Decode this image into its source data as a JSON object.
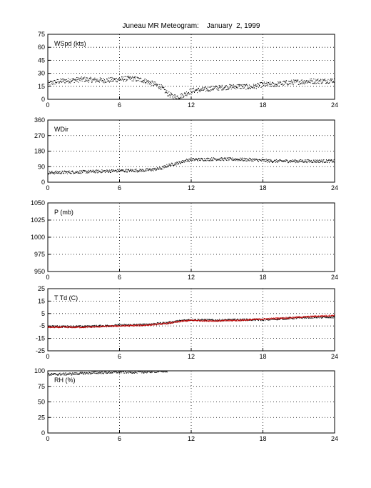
{
  "title": "Juneau MR Meteogram:    January  2, 1999",
  "colors": {
    "primary": "#000000",
    "dewpoint": "#cc0000",
    "grid": "#000000"
  },
  "chart_data": [
    {
      "type": "scatter",
      "label": "WSpd (kts)",
      "xlim": [
        0,
        24
      ],
      "ylim": [
        0,
        75
      ],
      "xticks": [
        0,
        6,
        12,
        18,
        24
      ],
      "yticks": [
        0,
        15,
        30,
        45,
        60,
        75
      ],
      "grid": true,
      "series": [
        {
          "color": "#000000",
          "keypoints": [
            [
              0,
              18
            ],
            [
              1,
              21
            ],
            [
              2,
              22
            ],
            [
              3,
              23
            ],
            [
              4,
              22
            ],
            [
              5,
              22
            ],
            [
              6,
              23
            ],
            [
              7,
              24
            ],
            [
              8,
              22
            ],
            [
              9,
              17
            ],
            [
              9.5,
              14
            ],
            [
              10,
              7
            ],
            [
              10.5,
              3
            ],
            [
              11,
              3
            ],
            [
              11.5,
              6
            ],
            [
              12,
              10
            ],
            [
              13,
              11
            ],
            [
              14,
              13
            ],
            [
              15,
              14
            ],
            [
              16,
              15
            ],
            [
              17,
              14
            ],
            [
              18,
              17
            ],
            [
              19,
              17
            ],
            [
              20,
              19
            ],
            [
              21,
              20
            ],
            [
              22,
              21
            ],
            [
              23,
              21
            ],
            [
              24,
              22
            ]
          ],
          "spread": 3
        }
      ]
    },
    {
      "type": "scatter",
      "label": "WDir",
      "xlim": [
        0,
        24
      ],
      "ylim": [
        0,
        360
      ],
      "xticks": [
        0,
        6,
        12,
        18,
        24
      ],
      "yticks": [
        0,
        90,
        180,
        270,
        360
      ],
      "grid": true,
      "series": [
        {
          "color": "#000000",
          "keypoints": [
            [
              0,
              55
            ],
            [
              2,
              58
            ],
            [
              4,
              62
            ],
            [
              6,
              66
            ],
            [
              8,
              68
            ],
            [
              9,
              75
            ],
            [
              9.5,
              80
            ],
            [
              10,
              95
            ],
            [
              10.5,
              105
            ],
            [
              11,
              112
            ],
            [
              11.5,
              125
            ],
            [
              12,
              130
            ],
            [
              14,
              134
            ],
            [
              16,
              132
            ],
            [
              17,
              130
            ],
            [
              18,
              125
            ],
            [
              19,
              122
            ],
            [
              21,
              122
            ],
            [
              24,
              122
            ]
          ],
          "spread": 9
        }
      ]
    },
    {
      "type": "line",
      "label": "P (mb)",
      "xlim": [
        0,
        24
      ],
      "ylim": [
        950,
        1050
      ],
      "xticks": [
        0,
        6,
        12,
        18,
        24
      ],
      "yticks": [
        950,
        975,
        1000,
        1025,
        1050
      ],
      "grid": true,
      "series": []
    },
    {
      "type": "scatter",
      "label": "T Td (C)",
      "xlim": [
        0,
        24
      ],
      "ylim": [
        -25,
        25
      ],
      "xticks": [
        0,
        6,
        12,
        18,
        24
      ],
      "yticks": [
        -25,
        -15,
        -5,
        5,
        15,
        25
      ],
      "grid": true,
      "series": [
        {
          "color": "#000000",
          "keypoints": [
            [
              0,
              -5.5
            ],
            [
              3,
              -5.5
            ],
            [
              6,
              -4.5
            ],
            [
              8,
              -4
            ],
            [
              10,
              -2.5
            ],
            [
              11,
              -1
            ],
            [
              12,
              0
            ],
            [
              14,
              -0.5
            ],
            [
              16,
              0
            ],
            [
              18,
              0
            ],
            [
              20,
              1
            ],
            [
              22,
              2
            ],
            [
              24,
              2
            ]
          ],
          "spread": 0.8
        },
        {
          "color": "#cc0000",
          "keypoints": [
            [
              0,
              -6
            ],
            [
              3,
              -6
            ],
            [
              6,
              -5
            ],
            [
              8,
              -4.5
            ],
            [
              10,
              -3
            ],
            [
              11,
              -1.5
            ],
            [
              12,
              -0.5
            ],
            [
              14,
              -1
            ],
            [
              16,
              -0.5
            ],
            [
              18,
              0.5
            ],
            [
              20,
              1.5
            ],
            [
              22,
              2.5
            ],
            [
              24,
              3.5
            ]
          ],
          "spread": 0.6
        }
      ]
    },
    {
      "type": "scatter",
      "label": "RH (%)",
      "xlim": [
        0,
        24
      ],
      "ylim": [
        0,
        100
      ],
      "xticks": [
        0,
        6,
        12,
        18,
        24
      ],
      "yticks": [
        0,
        25,
        50,
        75,
        100
      ],
      "grid": true,
      "series": [
        {
          "color": "#000000",
          "keypoints": [
            [
              0,
              94
            ],
            [
              2,
              95
            ],
            [
              4,
              97
            ],
            [
              6,
              98
            ],
            [
              8,
              98
            ],
            [
              9,
              99
            ],
            [
              10,
              99.5
            ]
          ],
          "spread": 2
        }
      ]
    }
  ]
}
